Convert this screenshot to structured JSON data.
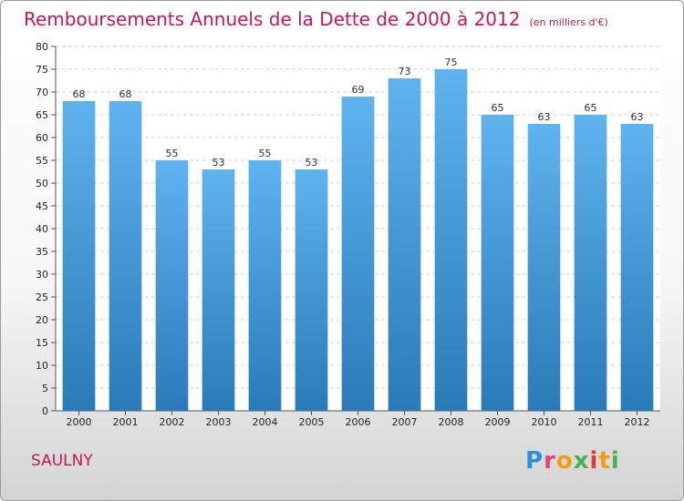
{
  "page": {
    "title": "Remboursements Annuels de la Dette de 2000 à 2012",
    "unit_note": "(en milliers d'€)",
    "commune": "SAULNY",
    "logo": {
      "text": "Proxiti",
      "colors": [
        "#2a8fd6",
        "#e0457b",
        "#f39c12",
        "#4caf50",
        "#e53935"
      ]
    }
  },
  "chart_data": {
    "type": "bar",
    "title": "Remboursements Annuels de la Dette de 2000 à 2012",
    "subtitle": "(en milliers d'€)",
    "xlabel": "",
    "ylabel": "",
    "categories": [
      "2000",
      "2001",
      "2002",
      "2003",
      "2004",
      "2005",
      "2006",
      "2007",
      "2008",
      "2009",
      "2010",
      "2011",
      "2012"
    ],
    "values": [
      68,
      68,
      55,
      53,
      55,
      53,
      69,
      73,
      75,
      65,
      63,
      65,
      63
    ],
    "ylim": [
      0,
      80
    ],
    "yticks": [
      0,
      5,
      10,
      15,
      20,
      25,
      30,
      35,
      40,
      45,
      50,
      55,
      60,
      65,
      70,
      75,
      80
    ],
    "grid": "horizontal dashed",
    "data_labels": true,
    "colors": {
      "bar_top": "#5fb3ee",
      "bar_bottom": "#2a7ab8",
      "title": "#c2185b"
    }
  }
}
